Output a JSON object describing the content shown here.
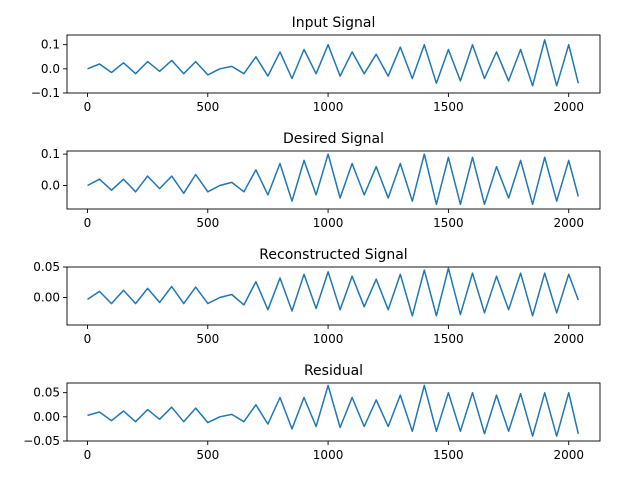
{
  "chart_data": [
    {
      "type": "line",
      "title": "Input Signal",
      "xlim": [
        -85,
        2130
      ],
      "ylim": [
        -0.1,
        0.14
      ],
      "xticks": [
        0,
        500,
        1000,
        1500,
        2000
      ],
      "xtick_labels": [
        "0",
        "500",
        "1000",
        "1500",
        "2000"
      ],
      "yticks": [
        0.1,
        0.0,
        -0.1
      ],
      "ytick_labels": [
        "0.1",
        "0.0",
        "−0.1"
      ],
      "series": [
        {
          "color": "#1f77b4",
          "x": [
            0,
            50,
            100,
            150,
            200,
            250,
            300,
            350,
            400,
            450,
            500,
            550,
            600,
            650,
            700,
            750,
            800,
            850,
            900,
            950,
            1000,
            1050,
            1100,
            1150,
            1200,
            1250,
            1300,
            1350,
            1400,
            1450,
            1500,
            1550,
            1600,
            1650,
            1700,
            1750,
            1800,
            1850,
            1900,
            1950,
            2000,
            2040
          ],
          "y": [
            0.0,
            0.02,
            -0.015,
            0.025,
            -0.02,
            0.03,
            -0.01,
            0.035,
            -0.02,
            0.03,
            -0.025,
            0.0,
            0.01,
            -0.02,
            0.05,
            -0.03,
            0.07,
            -0.04,
            0.08,
            -0.02,
            0.1,
            -0.03,
            0.07,
            -0.02,
            0.06,
            -0.03,
            0.09,
            -0.04,
            0.1,
            -0.06,
            0.08,
            -0.05,
            0.1,
            -0.04,
            0.07,
            -0.05,
            0.08,
            -0.07,
            0.12,
            -0.07,
            0.1,
            -0.06
          ]
        }
      ]
    },
    {
      "type": "line",
      "title": "Desired Signal",
      "xlim": [
        -85,
        2130
      ],
      "ylim": [
        -0.075,
        0.11
      ],
      "xticks": [
        0,
        500,
        1000,
        1500,
        2000
      ],
      "xtick_labels": [
        "0",
        "500",
        "1000",
        "1500",
        "2000"
      ],
      "yticks": [
        0.1,
        0.0
      ],
      "ytick_labels": [
        "0.1",
        "0.0"
      ],
      "series": [
        {
          "color": "#1f77b4",
          "x": [
            0,
            50,
            100,
            150,
            200,
            250,
            300,
            350,
            400,
            450,
            500,
            550,
            600,
            650,
            700,
            750,
            800,
            850,
            900,
            950,
            1000,
            1050,
            1100,
            1150,
            1200,
            1250,
            1300,
            1350,
            1400,
            1450,
            1500,
            1550,
            1600,
            1650,
            1700,
            1750,
            1800,
            1850,
            1900,
            1950,
            2000,
            2040
          ],
          "y": [
            0.0,
            0.02,
            -0.015,
            0.02,
            -0.02,
            0.03,
            -0.01,
            0.03,
            -0.025,
            0.035,
            -0.02,
            0.0,
            0.01,
            -0.02,
            0.05,
            -0.03,
            0.07,
            -0.05,
            0.08,
            -0.03,
            0.1,
            -0.04,
            0.07,
            -0.03,
            0.06,
            -0.04,
            0.07,
            -0.05,
            0.1,
            -0.06,
            0.09,
            -0.06,
            0.09,
            -0.06,
            0.06,
            -0.04,
            0.08,
            -0.06,
            0.09,
            -0.05,
            0.08,
            -0.035
          ]
        }
      ]
    },
    {
      "type": "line",
      "title": "Reconstructed Signal",
      "xlim": [
        -85,
        2130
      ],
      "ylim": [
        -0.045,
        0.05
      ],
      "xticks": [
        0,
        500,
        1000,
        1500,
        2000
      ],
      "xtick_labels": [
        "0",
        "500",
        "1000",
        "1500",
        "2000"
      ],
      "yticks": [
        0.05,
        0.0
      ],
      "ytick_labels": [
        "0.05",
        "0.00"
      ],
      "series": [
        {
          "color": "#1f77b4",
          "x": [
            0,
            50,
            100,
            150,
            200,
            250,
            300,
            350,
            400,
            450,
            500,
            550,
            600,
            650,
            700,
            750,
            800,
            850,
            900,
            950,
            1000,
            1050,
            1100,
            1150,
            1200,
            1250,
            1300,
            1350,
            1400,
            1450,
            1500,
            1550,
            1600,
            1650,
            1700,
            1750,
            1800,
            1850,
            1900,
            1950,
            2000,
            2040
          ],
          "y": [
            -0.003,
            0.01,
            -0.01,
            0.012,
            -0.01,
            0.015,
            -0.008,
            0.018,
            -0.01,
            0.017,
            -0.01,
            0.0,
            0.005,
            -0.012,
            0.026,
            -0.02,
            0.032,
            -0.022,
            0.038,
            -0.018,
            0.042,
            -0.02,
            0.035,
            -0.015,
            0.03,
            -0.02,
            0.038,
            -0.03,
            0.045,
            -0.03,
            0.048,
            -0.028,
            0.04,
            -0.025,
            0.035,
            -0.02,
            0.04,
            -0.03,
            0.04,
            -0.025,
            0.038,
            -0.004
          ]
        }
      ]
    },
    {
      "type": "line",
      "title": "Residual",
      "xlim": [
        -85,
        2130
      ],
      "ylim": [
        -0.05,
        0.07
      ],
      "xticks": [
        0,
        500,
        1000,
        1500,
        2000
      ],
      "xtick_labels": [
        "0",
        "500",
        "1000",
        "1500",
        "2000"
      ],
      "yticks": [
        0.05,
        0.0,
        -0.05
      ],
      "ytick_labels": [
        "0.05",
        "0.00",
        "−0.05"
      ],
      "series": [
        {
          "color": "#1f77b4",
          "x": [
            0,
            50,
            100,
            150,
            200,
            250,
            300,
            350,
            400,
            450,
            500,
            550,
            600,
            650,
            700,
            750,
            800,
            850,
            900,
            950,
            1000,
            1050,
            1100,
            1150,
            1200,
            1250,
            1300,
            1350,
            1400,
            1450,
            1500,
            1550,
            1600,
            1650,
            1700,
            1750,
            1800,
            1850,
            1900,
            1950,
            2000,
            2040
          ],
          "y": [
            0.003,
            0.01,
            -0.008,
            0.012,
            -0.01,
            0.015,
            -0.005,
            0.02,
            -0.01,
            0.018,
            -0.012,
            0.0,
            0.005,
            -0.01,
            0.025,
            -0.015,
            0.04,
            -0.025,
            0.04,
            -0.02,
            0.065,
            -0.022,
            0.04,
            -0.02,
            0.035,
            -0.02,
            0.045,
            -0.03,
            0.065,
            -0.03,
            0.05,
            -0.03,
            0.05,
            -0.035,
            0.045,
            -0.03,
            0.048,
            -0.04,
            0.05,
            -0.04,
            0.05,
            -0.035
          ]
        }
      ]
    }
  ]
}
